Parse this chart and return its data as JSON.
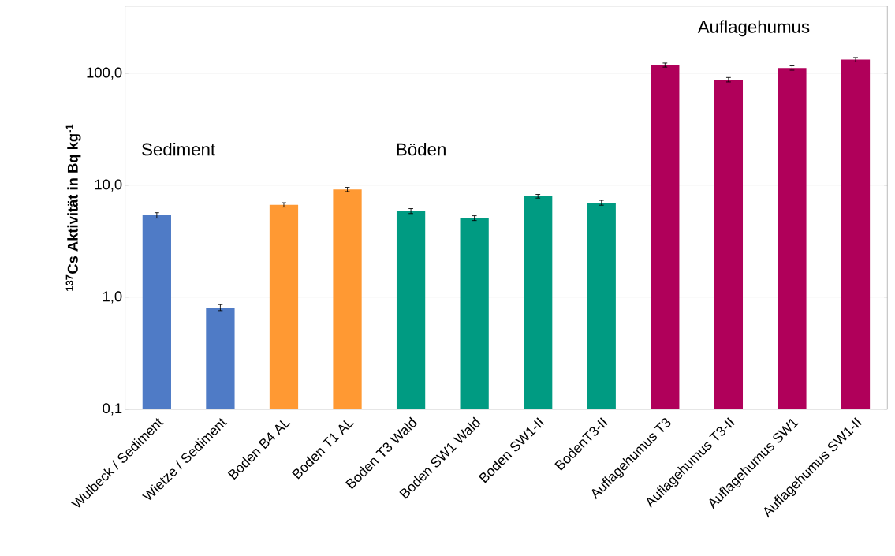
{
  "chart_data": {
    "type": "bar",
    "ylabel": "$^{137}$Cs Aktivität in Bq kg$^{-1}$",
    "categories": [
      "Wulbeck / Sediment",
      "Wietze / Sediment",
      "Boden B4 AL",
      "Boden T1 AL",
      "Boden T3 Wald",
      "Boden SW1 Wald",
      "Boden SW1-II",
      "BodenT3-II",
      "Auflagehumus T3",
      "Auflagehumus T3-II",
      "Auflagehumus SW1",
      "Auflagehumus SW1-II"
    ],
    "values": [
      5.4,
      0.81,
      6.7,
      9.2,
      5.9,
      5.1,
      8.0,
      7.0,
      119,
      88,
      112,
      133
    ],
    "errors": [
      0.3,
      0.05,
      0.3,
      0.4,
      0.3,
      0.25,
      0.3,
      0.35,
      5,
      4,
      5,
      6
    ],
    "colors": [
      "#4f7bc6",
      "#4f7bc6",
      "#ff9933",
      "#ff9933",
      "#009b82",
      "#009b82",
      "#009b82",
      "#009b82",
      "#b0005a",
      "#b0005a",
      "#b0005a",
      "#b0005a"
    ],
    "log": true,
    "grid": "y",
    "ylim": [
      0.1,
      400
    ],
    "yticks": [
      {
        "value": 0.1,
        "label": "0,1"
      },
      {
        "value": 1,
        "label": "1,0"
      },
      {
        "value": 10,
        "label": "10,0"
      },
      {
        "value": 100,
        "label": "100,0"
      }
    ],
    "annotations": [
      "Sediment",
      "Böden",
      "Auflagehumus"
    ]
  }
}
